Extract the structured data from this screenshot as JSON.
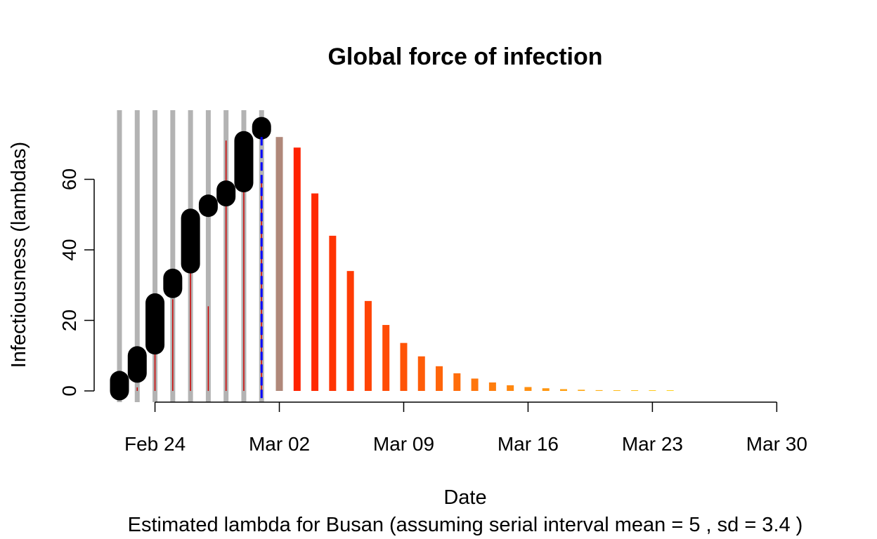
{
  "chart_data": {
    "type": "bar",
    "title": "Global force of infection",
    "xlabel": "Date",
    "ylabel": "Infectiousness (lambdas)",
    "subtitle": "Estimated lambda for Busan (assuming serial interval mean = 5 , sd = 3.4 )",
    "x_ticks": [
      "Feb 24",
      "Mar 02",
      "Mar 09",
      "Mar 16",
      "Mar 23",
      "Mar 30"
    ],
    "x_tick_days": [
      2,
      9,
      16,
      23,
      30,
      37
    ],
    "y_ticks": [
      0,
      20,
      40,
      60
    ],
    "xlim_days": [
      -2,
      37
    ],
    "ylim": [
      -3,
      80
    ],
    "grid": false,
    "day0": "Feb 22",
    "observed_lambda": [
      {
        "day": 0,
        "value": 0
      },
      {
        "day": 1,
        "value": 1
      },
      {
        "day": 2,
        "value": 12
      },
      {
        "day": 3,
        "value": 26
      },
      {
        "day": 4,
        "value": 41
      },
      {
        "day": 5,
        "value": 24
      },
      {
        "day": 6,
        "value": 71
      },
      {
        "day": 7,
        "value": 67
      },
      {
        "day": 8,
        "value": 60
      },
      {
        "day": 9,
        "value": 72
      }
    ],
    "projected_lambda": [
      {
        "day": 10,
        "value": 69
      },
      {
        "day": 11,
        "value": 56
      },
      {
        "day": 12,
        "value": 44
      },
      {
        "day": 13,
        "value": 34
      },
      {
        "day": 14,
        "value": 25.5
      },
      {
        "day": 15,
        "value": 18.7
      },
      {
        "day": 16,
        "value": 13.6
      },
      {
        "day": 17,
        "value": 9.8
      },
      {
        "day": 18,
        "value": 7
      },
      {
        "day": 19,
        "value": 5
      },
      {
        "day": 20,
        "value": 3.5
      },
      {
        "day": 21,
        "value": 2.4
      },
      {
        "day": 22,
        "value": 1.6
      },
      {
        "day": 23,
        "value": 1.1
      },
      {
        "day": 24,
        "value": 0.75
      },
      {
        "day": 25,
        "value": 0.5
      },
      {
        "day": 26,
        "value": 0.33
      },
      {
        "day": 27,
        "value": 0.22
      },
      {
        "day": 28,
        "value": 0.15
      },
      {
        "day": 29,
        "value": 0.1
      },
      {
        "day": 30,
        "value": 0.06
      },
      {
        "day": 31,
        "value": 0.04
      }
    ],
    "cases_segments": [
      {
        "day": 0,
        "from": 0,
        "to": 3
      },
      {
        "day": 1,
        "from": 5,
        "to": 10
      },
      {
        "day": 2,
        "from": 13,
        "to": 25
      },
      {
        "day": 3,
        "from": 29,
        "to": 32
      },
      {
        "day": 4,
        "from": 36,
        "to": 49
      },
      {
        "day": 5,
        "from": 52,
        "to": 53
      },
      {
        "day": 6,
        "from": 55,
        "to": 57
      },
      {
        "day": 7,
        "from": 59,
        "to": 71
      },
      {
        "day": 8,
        "from": 74,
        "to": 75
      }
    ],
    "history_band_days": [
      0,
      1,
      2,
      3,
      4,
      5,
      6,
      7,
      8
    ],
    "current_day": 8,
    "colors": {
      "history_band": "#b3b3b3",
      "observed_line": "#cc0000",
      "cases_line": "#000000",
      "current_line": "#0000ff",
      "current_fill": "#b0887a",
      "projection_start": "#ff2200",
      "projection_end": "#ffd21a"
    }
  }
}
